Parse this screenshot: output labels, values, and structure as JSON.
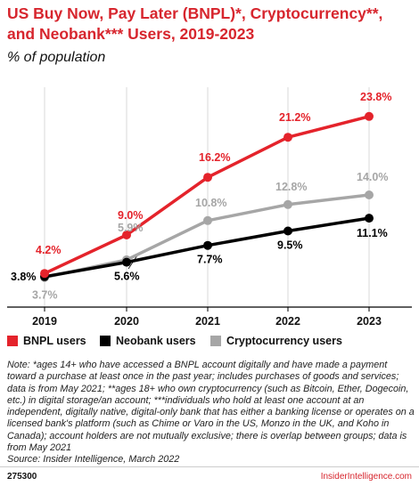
{
  "title": "US Buy Now, Pay Later (BNPL)*, Cryptocurrency**, and Neobank*** Users, 2019-2023",
  "subtitle": "% of population",
  "chart_data": {
    "type": "line",
    "categories": [
      "2019",
      "2020",
      "2021",
      "2022",
      "2023"
    ],
    "ylim": [
      0,
      26
    ],
    "grid": "vertical",
    "series": [
      {
        "name": "BNPL users",
        "color": "#e4232b",
        "values": [
          4.2,
          9.0,
          16.2,
          21.2,
          23.8
        ],
        "labels": [
          "4.2%",
          "9.0%",
          "16.2%",
          "21.2%",
          "23.8%"
        ]
      },
      {
        "name": "Neobank users",
        "color": "#000000",
        "values": [
          3.8,
          5.6,
          7.7,
          9.5,
          11.1
        ],
        "labels": [
          "3.8%",
          "5.6%",
          "7.7%",
          "9.5%",
          "11.1%"
        ]
      },
      {
        "name": "Cryptocurrency users",
        "color": "#a6a6a6",
        "values": [
          3.7,
          5.9,
          10.8,
          12.8,
          14.0
        ],
        "labels": [
          "3.7%",
          "5.9%",
          "10.8%",
          "12.8%",
          "14.0%"
        ]
      }
    ]
  },
  "legend": {
    "bnpl": "BNPL users",
    "neobank": "Neobank users",
    "crypto": "Cryptocurrency users"
  },
  "note": "Note: *ages 14+ who have accessed a BNPL account digitally and have made a payment toward a purchase at least once in the past year; includes purchases of goods and services; data is from May 2021; **ages 18+ who own cryptocurrency (such as Bitcoin, Ether, Dogecoin, etc.) in digital storage/an account; ***individuals who hold at least one account at an independent, digitally native, digital-only bank that has either a banking license or operates on a licensed bank's platform (such as Chime or Varo in the US, Monzo in the UK, and Koho in Canada); account holders are not mutually exclusive; there is overlap between groups; data is from May 2021",
  "source": "Source: Insider Intelligence, March 2022",
  "footer": {
    "id": "275300",
    "brand": "InsiderIntelligence.com"
  }
}
